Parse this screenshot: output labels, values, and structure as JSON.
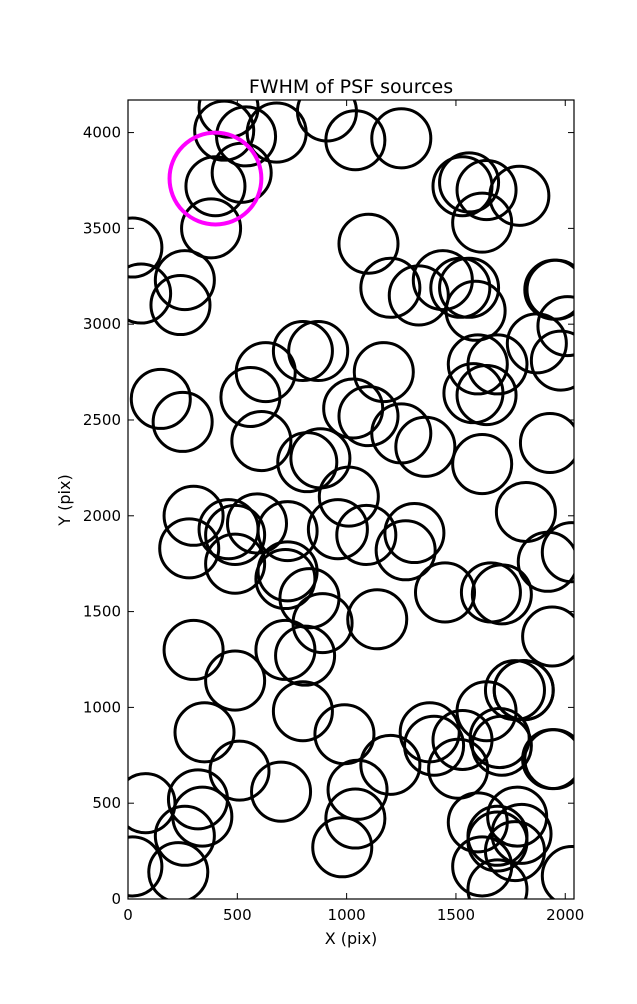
{
  "chart_data": {
    "type": "scatter",
    "title": "FWHM of PSF sources",
    "xlabel": "X (pix)",
    "ylabel": "Y (pix)",
    "xlim": [
      0,
      2040
    ],
    "ylim": [
      0,
      4170
    ],
    "xticks": [
      0,
      500,
      1000,
      1500,
      2000
    ],
    "yticks": [
      0,
      500,
      1000,
      1500,
      2000,
      2500,
      3000,
      3500,
      4000
    ],
    "grid": false,
    "marker_radius_pix": 135,
    "colors": {
      "source": "#000000",
      "highlight": "#ff00ff",
      "frame": "#000000"
    },
    "series": [
      {
        "points": [
          [
            460,
            4130
          ],
          [
            440,
            4010
          ],
          [
            540,
            3980
          ],
          [
            680,
            4000
          ],
          [
            910,
            4110
          ],
          [
            1040,
            3960
          ],
          [
            1250,
            3970
          ],
          [
            400,
            3720
          ],
          [
            520,
            3790
          ],
          [
            380,
            3500
          ],
          [
            1530,
            3720
          ],
          [
            1560,
            3740
          ],
          [
            1640,
            3700
          ],
          [
            1790,
            3670
          ],
          [
            1620,
            3530
          ],
          [
            20,
            3400
          ],
          [
            1100,
            3420
          ],
          [
            260,
            3230
          ],
          [
            60,
            3160
          ],
          [
            240,
            3100
          ],
          [
            1200,
            3190
          ],
          [
            1330,
            3150
          ],
          [
            1440,
            3230
          ],
          [
            1520,
            3190
          ],
          [
            1560,
            3190
          ],
          [
            1590,
            3070
          ],
          [
            1960,
            3180
          ],
          [
            1950,
            3180
          ],
          [
            2010,
            2990
          ],
          [
            800,
            2860
          ],
          [
            870,
            2860
          ],
          [
            630,
            2750
          ],
          [
            1170,
            2750
          ],
          [
            1600,
            2790
          ],
          [
            1690,
            2790
          ],
          [
            1870,
            2900
          ],
          [
            1980,
            2810
          ],
          [
            150,
            2610
          ],
          [
            250,
            2490
          ],
          [
            560,
            2620
          ],
          [
            1030,
            2560
          ],
          [
            1100,
            2520
          ],
          [
            1250,
            2430
          ],
          [
            1360,
            2360
          ],
          [
            1580,
            2640
          ],
          [
            1640,
            2630
          ],
          [
            610,
            2390
          ],
          [
            1930,
            2380
          ],
          [
            820,
            2280
          ],
          [
            880,
            2300
          ],
          [
            1620,
            2270
          ],
          [
            1010,
            2100
          ],
          [
            1820,
            2020
          ],
          [
            300,
            2000
          ],
          [
            460,
            1930
          ],
          [
            490,
            1900
          ],
          [
            590,
            1960
          ],
          [
            730,
            1920
          ],
          [
            960,
            1930
          ],
          [
            1090,
            1900
          ],
          [
            1310,
            1910
          ],
          [
            280,
            1830
          ],
          [
            1270,
            1820
          ],
          [
            490,
            1750
          ],
          [
            730,
            1710
          ],
          [
            720,
            1670
          ],
          [
            1920,
            1760
          ],
          [
            2030,
            1810
          ],
          [
            1450,
            1600
          ],
          [
            1660,
            1600
          ],
          [
            1710,
            1590
          ],
          [
            830,
            1570
          ],
          [
            890,
            1440
          ],
          [
            1140,
            1460
          ],
          [
            1940,
            1370
          ],
          [
            300,
            1300
          ],
          [
            720,
            1300
          ],
          [
            810,
            1270
          ],
          [
            490,
            1140
          ],
          [
            1770,
            1090
          ],
          [
            1810,
            1090
          ],
          [
            1810,
            1090
          ],
          [
            350,
            870
          ],
          [
            800,
            980
          ],
          [
            990,
            860
          ],
          [
            1640,
            980
          ],
          [
            1380,
            870
          ],
          [
            1400,
            800
          ],
          [
            1530,
            830
          ],
          [
            1700,
            840
          ],
          [
            1710,
            800
          ],
          [
            1940,
            730
          ],
          [
            1950,
            730
          ],
          [
            1510,
            680
          ],
          [
            80,
            500
          ],
          [
            510,
            670
          ],
          [
            700,
            560
          ],
          [
            1050,
            570
          ],
          [
            1200,
            700
          ],
          [
            320,
            520
          ],
          [
            340,
            430
          ],
          [
            1040,
            420
          ],
          [
            260,
            330
          ],
          [
            1600,
            400
          ],
          [
            1690,
            330
          ],
          [
            1780,
            430
          ],
          [
            1690,
            300
          ],
          [
            1800,
            340
          ],
          [
            1770,
            250
          ],
          [
            980,
            270
          ],
          [
            20,
            170
          ],
          [
            230,
            140
          ],
          [
            1620,
            170
          ],
          [
            1690,
            50
          ],
          [
            2030,
            120
          ]
        ]
      },
      {
        "name": "highlight",
        "points": [
          [
            400,
            3760
          ]
        ],
        "marker_radius_pix": 210
      }
    ]
  }
}
